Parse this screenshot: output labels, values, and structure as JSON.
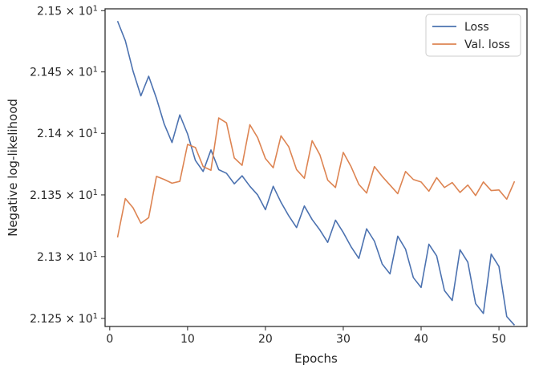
{
  "chart_data": {
    "type": "line",
    "title": "",
    "xlabel": "Epochs",
    "ylabel": "Negative log-likelihood",
    "xlim": [
      -0.6,
      53.6
    ],
    "ylim": [
      21.2435,
      21.5015
    ],
    "yscale": "log",
    "x_ticks": [
      0,
      10,
      20,
      30,
      40,
      50
    ],
    "y_ticks": [
      {
        "value": 21.25,
        "mantissa": "2.125"
      },
      {
        "value": 21.3,
        "mantissa": "2.13"
      },
      {
        "value": 21.35,
        "mantissa": "2.135"
      },
      {
        "value": 21.4,
        "mantissa": "2.14"
      },
      {
        "value": 21.45,
        "mantissa": "2.145"
      },
      {
        "value": 21.5,
        "mantissa": "2.15"
      }
    ],
    "y_tick_multiplier": "× 10",
    "y_tick_exponent": "1",
    "grid": false,
    "legend_position": "top-right",
    "x": [
      1,
      2,
      3,
      4,
      5,
      6,
      7,
      8,
      9,
      10,
      11,
      12,
      13,
      14,
      15,
      16,
      17,
      18,
      19,
      20,
      21,
      22,
      23,
      24,
      25,
      26,
      27,
      28,
      29,
      30,
      31,
      32,
      33,
      34,
      35,
      36,
      37,
      38,
      39,
      40,
      41,
      42,
      43,
      44,
      45,
      46,
      47,
      48,
      49,
      50,
      51,
      52
    ],
    "series": [
      {
        "name": "Loss",
        "color": "#4c72b0",
        "values": [
          21.4915,
          21.4755,
          21.4505,
          21.4305,
          21.4465,
          21.4285,
          21.4075,
          21.3925,
          21.415,
          21.3995,
          21.378,
          21.369,
          21.3865,
          21.3705,
          21.3675,
          21.359,
          21.3655,
          21.357,
          21.35,
          21.338,
          21.357,
          21.344,
          21.333,
          21.3235,
          21.341,
          21.33,
          21.3215,
          21.3115,
          21.3295,
          21.3195,
          21.308,
          21.2985,
          21.3225,
          21.3125,
          21.294,
          21.286,
          21.3165,
          21.306,
          21.283,
          21.275,
          21.31,
          21.3005,
          21.2725,
          21.2645,
          21.3055,
          21.2955,
          21.262,
          21.254,
          21.302,
          21.292,
          21.2515,
          21.2445
        ]
      },
      {
        "name": "Val. loss",
        "color": "#dd8452",
        "values": [
          21.3155,
          21.347,
          21.3395,
          21.327,
          21.3315,
          21.365,
          21.3625,
          21.3595,
          21.361,
          21.391,
          21.3885,
          21.373,
          21.37,
          21.4125,
          21.4085,
          21.38,
          21.374,
          21.407,
          21.3965,
          21.3795,
          21.372,
          21.398,
          21.389,
          21.3705,
          21.3635,
          21.394,
          21.3825,
          21.362,
          21.356,
          21.3845,
          21.373,
          21.3585,
          21.3515,
          21.373,
          21.365,
          21.358,
          21.351,
          21.369,
          21.3625,
          21.3605,
          21.353,
          21.364,
          21.356,
          21.36,
          21.352,
          21.358,
          21.3495,
          21.3605,
          21.3535,
          21.354,
          21.3465,
          21.361
        ]
      }
    ]
  }
}
